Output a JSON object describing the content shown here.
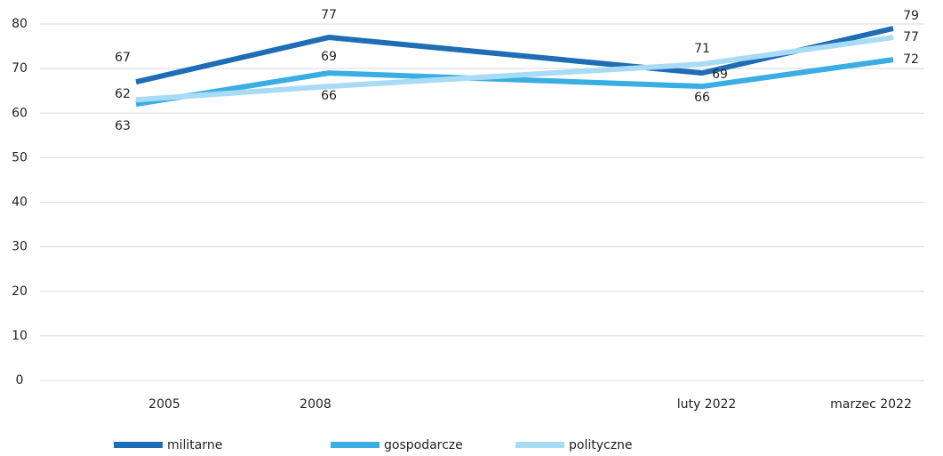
{
  "chart_data": {
    "type": "line",
    "categories": [
      "2005",
      "2008",
      "luty 2022",
      "marzec 2022"
    ],
    "series": [
      {
        "name": "militarne",
        "color": "#1f6db5",
        "values": [
          67,
          77,
          69,
          79
        ]
      },
      {
        "name": "gospodarcze",
        "color": "#3aaee2",
        "values": [
          62,
          69,
          66,
          72
        ]
      },
      {
        "name": "polityczne",
        "color": "#a8dcf5",
        "values": [
          63,
          66,
          71,
          77
        ]
      }
    ],
    "ylim": [
      0,
      80
    ],
    "yticks": [
      0,
      10,
      20,
      30,
      40,
      50,
      60,
      70,
      80
    ],
    "grid": true,
    "legend": "bottom"
  }
}
